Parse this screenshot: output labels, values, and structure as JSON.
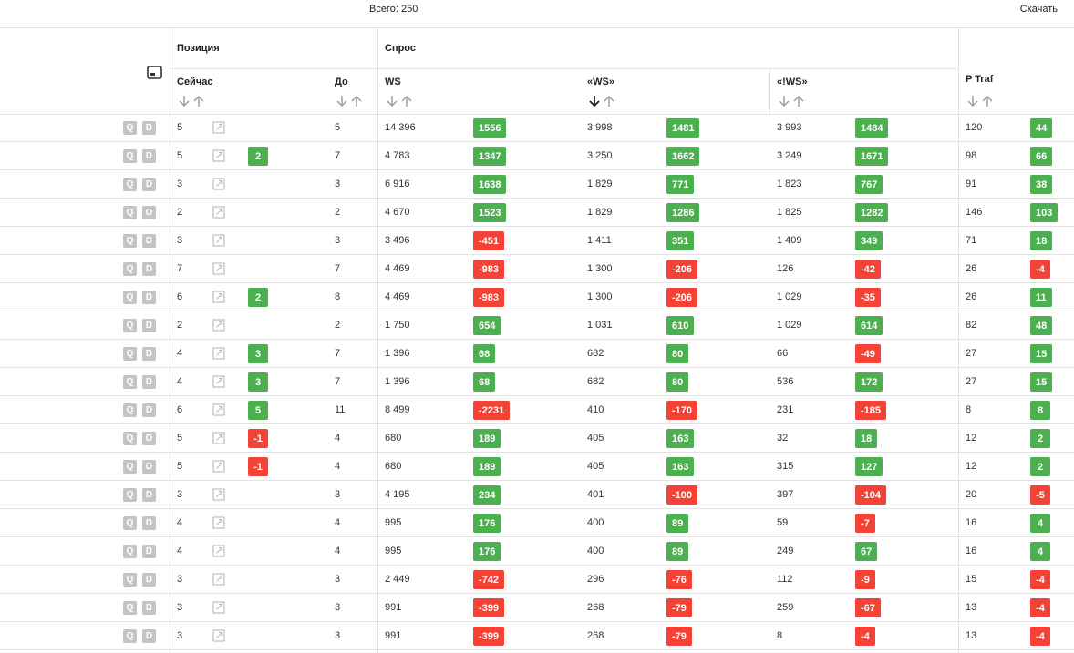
{
  "header": {
    "total": "Всего: 250",
    "download": "Скачать"
  },
  "groups": {
    "position": "Позиция",
    "demand": "Спрос"
  },
  "columns": {
    "now": "Сейчас",
    "before": "До",
    "ws": "WS",
    "qws": "«WS»",
    "xws": "«!WS»",
    "ptraf": "P Traf"
  },
  "colors": {
    "positive": "#4caf50",
    "negative": "#f44336",
    "qd_badge": "#c4c4c4"
  },
  "sort_active": "qws-desc",
  "rows": [
    {
      "q": "Q",
      "d": "D",
      "now": "5",
      "change": "",
      "before": "5",
      "ws": "14 396",
      "ws_delta": "1556",
      "qws": "3 998",
      "qws_delta": "1481",
      "xws": "3 993",
      "xws_delta": "1484",
      "ptraf": "120",
      "ptraf_delta": "44"
    },
    {
      "q": "Q",
      "d": "D",
      "now": "5",
      "change": "2",
      "before": "7",
      "ws": "4 783",
      "ws_delta": "1347",
      "qws": "3 250",
      "qws_delta": "1662",
      "xws": "3 249",
      "xws_delta": "1671",
      "ptraf": "98",
      "ptraf_delta": "66"
    },
    {
      "q": "Q",
      "d": "D",
      "now": "3",
      "change": "",
      "before": "3",
      "ws": "6 916",
      "ws_delta": "1638",
      "qws": "1 829",
      "qws_delta": "771",
      "xws": "1 823",
      "xws_delta": "767",
      "ptraf": "91",
      "ptraf_delta": "38"
    },
    {
      "q": "Q",
      "d": "D",
      "now": "2",
      "change": "",
      "before": "2",
      "ws": "4 670",
      "ws_delta": "1523",
      "qws": "1 829",
      "qws_delta": "1286",
      "xws": "1 825",
      "xws_delta": "1282",
      "ptraf": "146",
      "ptraf_delta": "103"
    },
    {
      "q": "Q",
      "d": "D",
      "now": "3",
      "change": "",
      "before": "3",
      "ws": "3 496",
      "ws_delta": "-451",
      "qws": "1 411",
      "qws_delta": "351",
      "xws": "1 409",
      "xws_delta": "349",
      "ptraf": "71",
      "ptraf_delta": "18"
    },
    {
      "q": "Q",
      "d": "D",
      "now": "7",
      "change": "",
      "before": "7",
      "ws": "4 469",
      "ws_delta": "-983",
      "qws": "1 300",
      "qws_delta": "-206",
      "xws": "126",
      "xws_delta": "-42",
      "ptraf": "26",
      "ptraf_delta": "-4"
    },
    {
      "q": "Q",
      "d": "D",
      "now": "6",
      "change": "2",
      "before": "8",
      "ws": "4 469",
      "ws_delta": "-983",
      "qws": "1 300",
      "qws_delta": "-206",
      "xws": "1 029",
      "xws_delta": "-35",
      "ptraf": "26",
      "ptraf_delta": "11"
    },
    {
      "q": "Q",
      "d": "D",
      "now": "2",
      "change": "",
      "before": "2",
      "ws": "1 750",
      "ws_delta": "654",
      "qws": "1 031",
      "qws_delta": "610",
      "xws": "1 029",
      "xws_delta": "614",
      "ptraf": "82",
      "ptraf_delta": "48"
    },
    {
      "q": "Q",
      "d": "D",
      "now": "4",
      "change": "3",
      "before": "7",
      "ws": "1 396",
      "ws_delta": "68",
      "qws": "682",
      "qws_delta": "80",
      "xws": "66",
      "xws_delta": "-49",
      "ptraf": "27",
      "ptraf_delta": "15"
    },
    {
      "q": "Q",
      "d": "D",
      "now": "4",
      "change": "3",
      "before": "7",
      "ws": "1 396",
      "ws_delta": "68",
      "qws": "682",
      "qws_delta": "80",
      "xws": "536",
      "xws_delta": "172",
      "ptraf": "27",
      "ptraf_delta": "15"
    },
    {
      "q": "Q",
      "d": "D",
      "now": "6",
      "change": "5",
      "before": "11",
      "ws": "8 499",
      "ws_delta": "-2231",
      "qws": "410",
      "qws_delta": "-170",
      "xws": "231",
      "xws_delta": "-185",
      "ptraf": "8",
      "ptraf_delta": "8"
    },
    {
      "q": "Q",
      "d": "D",
      "now": "5",
      "change": "-1",
      "before": "4",
      "ws": "680",
      "ws_delta": "189",
      "qws": "405",
      "qws_delta": "163",
      "xws": "32",
      "xws_delta": "18",
      "ptraf": "12",
      "ptraf_delta": "2"
    },
    {
      "q": "Q",
      "d": "D",
      "now": "5",
      "change": "-1",
      "before": "4",
      "ws": "680",
      "ws_delta": "189",
      "qws": "405",
      "qws_delta": "163",
      "xws": "315",
      "xws_delta": "127",
      "ptraf": "12",
      "ptraf_delta": "2"
    },
    {
      "q": "Q",
      "d": "D",
      "now": "3",
      "change": "",
      "before": "3",
      "ws": "4 195",
      "ws_delta": "234",
      "qws": "401",
      "qws_delta": "-100",
      "xws": "397",
      "xws_delta": "-104",
      "ptraf": "20",
      "ptraf_delta": "-5"
    },
    {
      "q": "Q",
      "d": "D",
      "now": "4",
      "change": "",
      "before": "4",
      "ws": "995",
      "ws_delta": "176",
      "qws": "400",
      "qws_delta": "89",
      "xws": "59",
      "xws_delta": "-7",
      "ptraf": "16",
      "ptraf_delta": "4"
    },
    {
      "q": "Q",
      "d": "D",
      "now": "4",
      "change": "",
      "before": "4",
      "ws": "995",
      "ws_delta": "176",
      "qws": "400",
      "qws_delta": "89",
      "xws": "249",
      "xws_delta": "67",
      "ptraf": "16",
      "ptraf_delta": "4"
    },
    {
      "q": "Q",
      "d": "D",
      "now": "3",
      "change": "",
      "before": "3",
      "ws": "2 449",
      "ws_delta": "-742",
      "qws": "296",
      "qws_delta": "-76",
      "xws": "112",
      "xws_delta": "-9",
      "ptraf": "15",
      "ptraf_delta": "-4"
    },
    {
      "q": "Q",
      "d": "D",
      "now": "3",
      "change": "",
      "before": "3",
      "ws": "991",
      "ws_delta": "-399",
      "qws": "268",
      "qws_delta": "-79",
      "xws": "259",
      "xws_delta": "-67",
      "ptraf": "13",
      "ptraf_delta": "-4"
    },
    {
      "q": "Q",
      "d": "D",
      "now": "3",
      "change": "",
      "before": "3",
      "ws": "991",
      "ws_delta": "-399",
      "qws": "268",
      "qws_delta": "-79",
      "xws": "8",
      "xws_delta": "-4",
      "ptraf": "13",
      "ptraf_delta": "-4"
    }
  ]
}
